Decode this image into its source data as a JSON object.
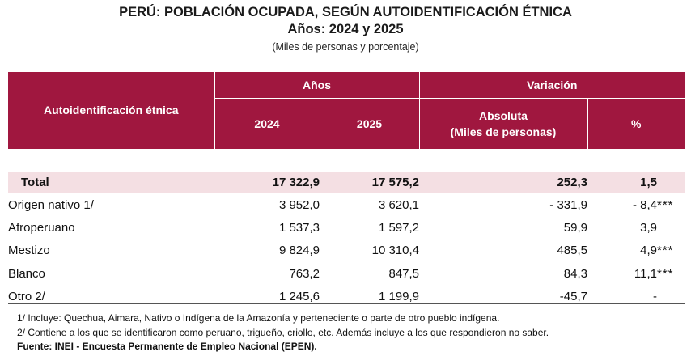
{
  "title": {
    "line1": "PERÚ: POBLACIÓN OCUPADA, SEGÚN AUTOIDENTIFICACIÓN ÉTNICA",
    "line2": "Años: 2024 y 2025",
    "subtitle": "(Miles de personas y porcentaje)"
  },
  "table": {
    "headers": {
      "row_label": "Autoidentificación étnica",
      "group_years": "Años",
      "group_variation": "Variación",
      "year_2024": "2024",
      "year_2025": "2025",
      "absolute_line1": "Absoluta",
      "absolute_line2": "(Miles de personas)",
      "percent": "%"
    },
    "rows": [
      {
        "label": "Total",
        "y2024": "17 322,9",
        "y2025": "17 575,2",
        "abs": "252,3",
        "pct": "1,5",
        "sig": ""
      },
      {
        "label": "Origen nativo 1/",
        "y2024": "3 952,0",
        "y2025": "3 620,1",
        "abs": "- 331,9",
        "pct": "- 8,4",
        "sig": "***"
      },
      {
        "label": "Afroperuano",
        "y2024": "1 537,3",
        "y2025": "1 597,2",
        "abs": "59,9",
        "pct": "3,9",
        "sig": ""
      },
      {
        "label": "Mestizo",
        "y2024": "9 824,9",
        "y2025": "10 310,4",
        "abs": "485,5",
        "pct": "4,9",
        "sig": "***"
      },
      {
        "label": "Blanco",
        "y2024": "763,2",
        "y2025": "847,5",
        "abs": "84,3",
        "pct": "11,1",
        "sig": "***"
      },
      {
        "label": "Otro 2/",
        "y2024": "1 245,6",
        "y2025": "1 199,9",
        "abs": "-45,7",
        "pct": "-",
        "sig": ""
      }
    ]
  },
  "notes": {
    "n1": "1/ Incluye: Quechua, Aimara, Nativo o Indígena de la Amazonía y perteneciente o parte de otro pueblo indígena.",
    "n2": "2/ Contiene a los que se identificaron como peruano, trigueño, criollo, etc. Además incluye a los que respondieron no saber.",
    "source": "Fuente: INEI - Encuesta Permanente de Empleo Nacional (EPEN)."
  },
  "colors": {
    "header_bg": "#a0173f",
    "total_row_bg": "#f4dfe3"
  }
}
